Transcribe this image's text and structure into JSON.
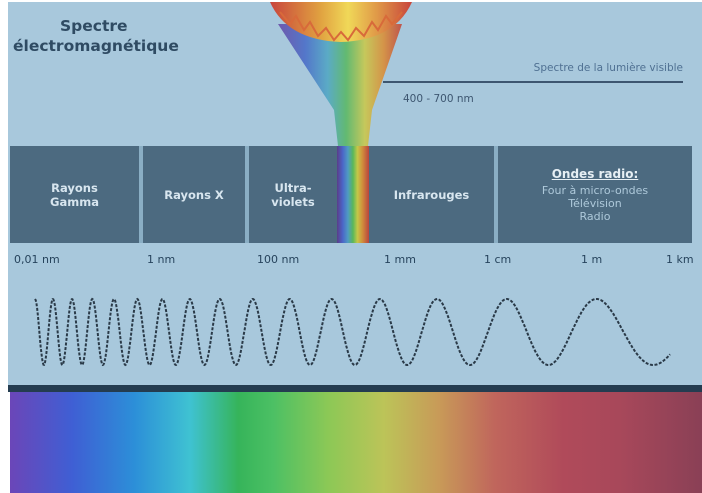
{
  "title": {
    "line1": "Spectre",
    "line2": "électromagnétique"
  },
  "visible": {
    "label": "Spectre de la lumière visible",
    "range": "400 - 700 nm"
  },
  "bands": {
    "gamma": [
      "Rayons",
      "Gamma"
    ],
    "x": [
      "Rayons X"
    ],
    "uv": [
      "Ultra-",
      "violets"
    ],
    "ir": [
      "Infrarouges"
    ],
    "radio": {
      "title": "Ondes radio:",
      "lines": [
        "Four à micro-ondes",
        "Télévision",
        "Radio"
      ]
    }
  },
  "scale": [
    "0,01 nm",
    "1 nm",
    "100 nm",
    "1 mm",
    "1 cm",
    "1 m",
    "1 km"
  ],
  "colors": {
    "panel": "#a8c8dc",
    "band": "#4c6a80",
    "title": "#2f4b63"
  }
}
